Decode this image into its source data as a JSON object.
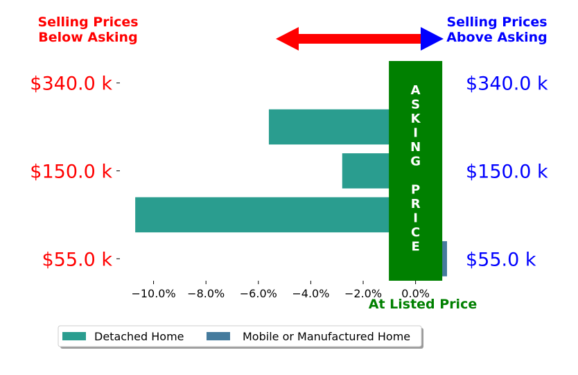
{
  "chart_data": {
    "type": "bar",
    "orientation": "horizontal",
    "categories": [
      "$55.0 k",
      "",
      "$150.0 k",
      "",
      "$340.0 k"
    ],
    "category_tick_positions": [
      0,
      2,
      4
    ],
    "series": [
      {
        "name": "Detached Home",
        "color": "#2a9d8f",
        "values": [
          null,
          -10.7,
          -2.8,
          -5.6,
          null
        ]
      },
      {
        "name": "Mobile or Manufactured Home",
        "color": "#457b9d",
        "values": [
          1.2,
          null,
          null,
          null,
          null
        ]
      }
    ],
    "x_ticks": [
      -10.0,
      -8.0,
      -6.0,
      -4.0,
      -2.0,
      0.0
    ],
    "x_tick_labels": [
      "−10.0%",
      "−8.0%",
      "−6.0%",
      "−4.0%",
      "−2.0%",
      "0.0%"
    ],
    "xlim": [
      -11.1,
      1.2
    ],
    "ylim": [
      -0.5,
      4.5
    ],
    "left_tick_labels": [
      "$55.0 k",
      "$150.0 k",
      "$340.0 k"
    ],
    "right_tick_labels": [
      "$55.0 k",
      "$150.0 k",
      "$340.0 k"
    ],
    "left_label_color": "#ff0000",
    "right_label_color": "#0000ff",
    "header_left": [
      "Selling Prices",
      "Below Asking"
    ],
    "header_right": [
      "Selling Prices",
      "Above Asking"
    ],
    "asking_band": {
      "text": "ASKING PRICE",
      "color": "#008000",
      "x_range": [
        -1.0,
        1.0
      ]
    },
    "xlabel": "At Listed Price",
    "xlabel_color": "#008000",
    "arrow_color_left": "#ff0000",
    "arrow_color_right": "#0000ff",
    "legend": [
      "Detached Home",
      "Mobile or Manufactured Home"
    ],
    "legend_placement": "bottom-left",
    "grid": false
  }
}
